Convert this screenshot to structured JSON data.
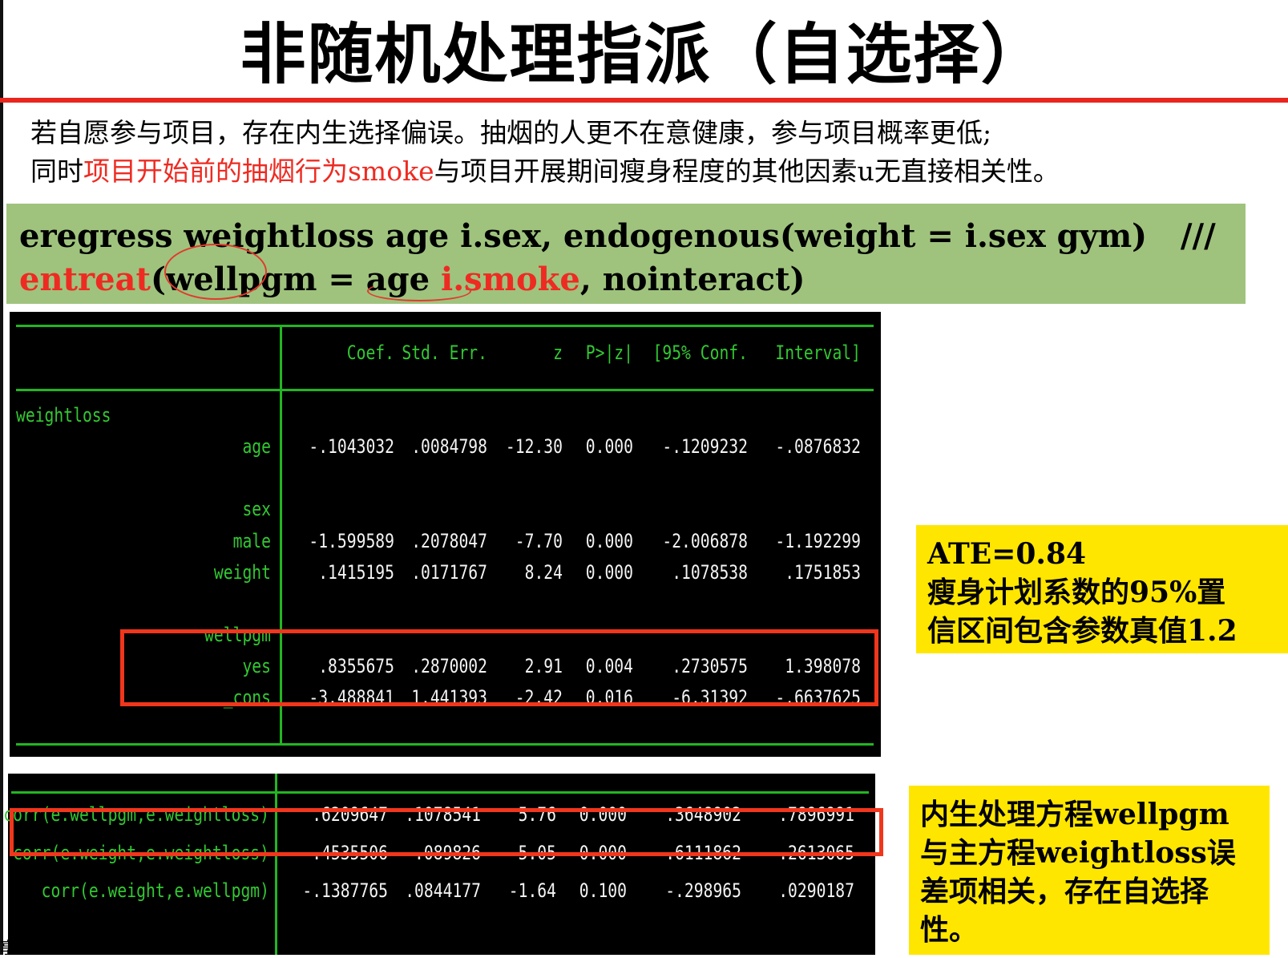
{
  "title": "非随机处理指派（自选择）",
  "intro": {
    "line1": "若自愿参与项目，存在内生选择偏误。抽烟的人更不在意健康，参与项目概率更低;",
    "line2_pre": "同时",
    "line2_red": "项目开始前的抽烟行为smoke",
    "line2_post": "与项目开展期间瘦身程度的其他因素u无直接相关性。"
  },
  "command": {
    "line1": "eregress weightloss age i.sex, endogenous(weight = i.sex gym)   ///",
    "line2_red1": "entreat",
    "line2_a": "(wellpgm = age ",
    "line2_red2": "i.smoke",
    "line2_b": ", nointeract)"
  },
  "main_table": {
    "headers": [
      "Coef.",
      "Std. Err.",
      "z",
      "P>|z|",
      "[95% Conf.",
      "Interval]"
    ],
    "group_label": "weightloss",
    "rows": [
      {
        "label": "age",
        "values": [
          "-.1043032",
          ".0084798",
          "-12.30",
          "0.000",
          "-.1209232",
          "-.0876832"
        ]
      },
      {
        "label": "sex",
        "values": [
          "",
          "",
          "",
          "",
          "",
          ""
        ]
      },
      {
        "label": "male",
        "values": [
          "-1.599589",
          ".2078047",
          "-7.70",
          "0.000",
          "-2.006878",
          "-1.192299"
        ]
      },
      {
        "label": "weight",
        "values": [
          ".1415195",
          ".0171767",
          "8.24",
          "0.000",
          ".1078538",
          ".1751853"
        ]
      },
      {
        "label": "wellpgm",
        "values": [
          "",
          "",
          "",
          "",
          "",
          ""
        ]
      },
      {
        "label": "yes",
        "values": [
          ".8355675",
          ".2870002",
          "2.91",
          "0.004",
          ".2730575",
          "1.398078"
        ]
      },
      {
        "label": "_cons",
        "values": [
          "-3.488841",
          "1.441393",
          "-2.42",
          "0.016",
          "-6.31392",
          "-.6637625"
        ]
      }
    ]
  },
  "corr_table": {
    "rows": [
      {
        "label": "corr(e.wellpgm,e.weightloss)",
        "values": [
          ".6209647",
          ".1078541",
          "5.76",
          "0.000",
          ".3648902",
          ".7896991"
        ]
      },
      {
        "label": "corr(e.weight,e.weightloss)",
        "values": [
          "-.4535506",
          ".089826",
          "-5.05",
          "0.000",
          "-.6111862",
          "-.2613065"
        ]
      },
      {
        "label": "corr(e.weight,e.wellpgm)",
        "values": [
          "-.1387765",
          ".0844177",
          "-1.64",
          "0.100",
          "-.298965",
          ".0290187"
        ]
      }
    ]
  },
  "note_ate": {
    "line1": "ATE=0.84",
    "line2": "瘦身计划系数的95%置",
    "line3": "信区间包含参数真值1.2"
  },
  "note_endog": {
    "line1": "内生处理方程wellpgm",
    "line2": "与主方程weightloss误",
    "line3": "差项相关，存在自选择",
    "line4": "性。"
  },
  "corner_text": "享",
  "colors": {
    "accent_red": "#ee2b22",
    "stata_green": "#32c832",
    "cmd_bg": "#9fc37d",
    "note_bg": "#ffe600"
  }
}
